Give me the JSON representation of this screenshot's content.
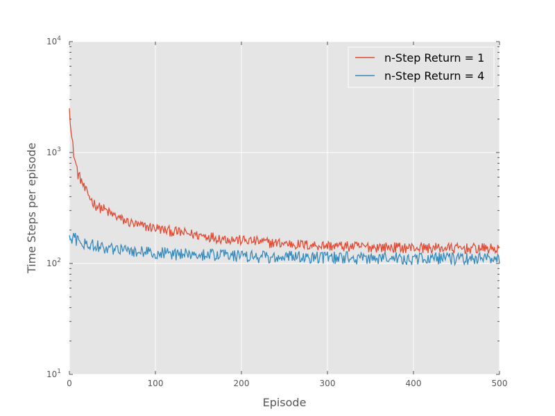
{
  "chart_data": {
    "type": "line",
    "title": "",
    "xlabel": "Episode",
    "ylabel": "Time Steps per episode",
    "xlim": [
      0,
      500
    ],
    "ylim": [
      10,
      10000
    ],
    "yscale": "log",
    "grid": true,
    "legend_position": "top-right",
    "x_ticks": [
      {
        "value": 0,
        "label": "0"
      },
      {
        "value": 100,
        "label": "100"
      },
      {
        "value": 200,
        "label": "200"
      },
      {
        "value": 300,
        "label": "300"
      },
      {
        "value": 400,
        "label": "400"
      },
      {
        "value": 500,
        "label": "500"
      }
    ],
    "y_ticks": [
      {
        "value": 10,
        "base": "10",
        "exp": "1"
      },
      {
        "value": 100,
        "base": "10",
        "exp": "2"
      },
      {
        "value": 1000,
        "base": "10",
        "exp": "3"
      },
      {
        "value": 10000,
        "base": "10",
        "exp": "4"
      }
    ],
    "x": [
      0,
      2,
      4,
      6,
      8,
      10,
      14,
      18,
      22,
      26,
      30,
      35,
      40,
      45,
      50,
      55,
      60,
      70,
      80,
      90,
      100,
      110,
      120,
      130,
      140,
      150,
      160,
      170,
      180,
      190,
      200,
      210,
      220,
      230,
      240,
      250,
      260,
      270,
      280,
      290,
      300,
      310,
      320,
      330,
      340,
      350,
      360,
      370,
      380,
      390,
      400,
      410,
      420,
      430,
      440,
      450,
      460,
      470,
      480,
      490,
      500
    ],
    "series": [
      {
        "name": "n-Step Return = 1",
        "color": "#e24a33",
        "values": [
          2800,
          1500,
          1150,
          880,
          760,
          640,
          560,
          460,
          420,
          370,
          340,
          320,
          310,
          290,
          275,
          265,
          250,
          235,
          220,
          215,
          210,
          200,
          195,
          190,
          185,
          180,
          178,
          172,
          168,
          165,
          162,
          160,
          158,
          155,
          153,
          152,
          150,
          148,
          147,
          146,
          145,
          144,
          143,
          142,
          142,
          141,
          141,
          140,
          140,
          139,
          139,
          139,
          138,
          138,
          138,
          137,
          137,
          137,
          137,
          136,
          136
        ]
      },
      {
        "name": "n-Step Return = 4",
        "color": "#348abd",
        "values": [
          165,
          175,
          170,
          182,
          160,
          165,
          150,
          158,
          145,
          150,
          140,
          145,
          138,
          142,
          135,
          140,
          132,
          130,
          128,
          126,
          125,
          124,
          123,
          122,
          121,
          120,
          120,
          119,
          118,
          118,
          117,
          117,
          116,
          116,
          115,
          115,
          115,
          114,
          114,
          114,
          113,
          113,
          113,
          113,
          112,
          112,
          112,
          112,
          112,
          112,
          111,
          111,
          111,
          111,
          111,
          111,
          111,
          111,
          110,
          110,
          110
        ]
      }
    ]
  }
}
